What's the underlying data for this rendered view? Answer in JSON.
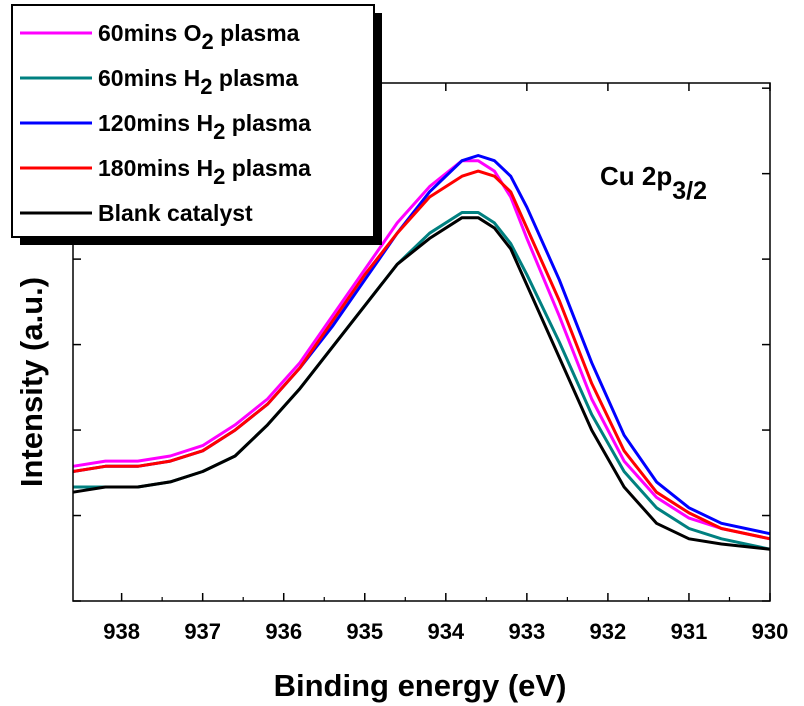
{
  "chart_data": {
    "type": "line",
    "xlabel": "Binding energy (eV)",
    "ylabel": "Intensity (a.u.)",
    "xlim": [
      938.6,
      930.0
    ],
    "x_reversed": true,
    "ylim": [
      0,
      100
    ],
    "y_tick_labels_shown": false,
    "x_ticks": [
      938,
      937,
      936,
      935,
      934,
      933,
      932,
      931,
      930
    ],
    "x_tick_labels": [
      "938",
      "937",
      "936",
      "935",
      "934",
      "933",
      "932",
      "931",
      "930"
    ],
    "annotation": {
      "main": "Cu 2p",
      "sub": "3/2"
    },
    "legend_position": "top-left",
    "series": [
      {
        "name": "60mins O2 plasma",
        "label_parts": [
          "60mins O",
          "2",
          " plasma"
        ],
        "color": "#ff00ff",
        "points": [
          [
            938.6,
            26
          ],
          [
            938.2,
            27
          ],
          [
            937.8,
            27
          ],
          [
            937.4,
            28
          ],
          [
            937.0,
            30
          ],
          [
            936.6,
            34
          ],
          [
            936.2,
            39
          ],
          [
            935.8,
            46
          ],
          [
            935.4,
            55
          ],
          [
            935.0,
            64
          ],
          [
            934.6,
            73
          ],
          [
            934.2,
            80
          ],
          [
            933.8,
            85
          ],
          [
            933.6,
            85
          ],
          [
            933.4,
            83
          ],
          [
            933.2,
            78
          ],
          [
            933.0,
            70
          ],
          [
            932.6,
            55
          ],
          [
            932.2,
            39
          ],
          [
            931.8,
            27
          ],
          [
            931.4,
            20
          ],
          [
            931.0,
            16
          ],
          [
            930.6,
            14
          ],
          [
            930.0,
            12
          ]
        ]
      },
      {
        "name": "60mins H2 plasma",
        "label_parts": [
          "60mins H",
          "2",
          " plasma"
        ],
        "color": "#008080",
        "points": [
          [
            938.6,
            22
          ],
          [
            938.2,
            22
          ],
          [
            937.8,
            22
          ],
          [
            937.4,
            23
          ],
          [
            937.0,
            25
          ],
          [
            936.6,
            28
          ],
          [
            936.2,
            34
          ],
          [
            935.8,
            41
          ],
          [
            935.4,
            49
          ],
          [
            935.0,
            57
          ],
          [
            934.6,
            65
          ],
          [
            934.2,
            71
          ],
          [
            933.8,
            75
          ],
          [
            933.6,
            75
          ],
          [
            933.4,
            73
          ],
          [
            933.2,
            69
          ],
          [
            933.0,
            63
          ],
          [
            932.6,
            50
          ],
          [
            932.2,
            36
          ],
          [
            931.8,
            25
          ],
          [
            931.4,
            18
          ],
          [
            931.0,
            14
          ],
          [
            930.6,
            12
          ],
          [
            930.0,
            10
          ]
        ]
      },
      {
        "name": "120mins H2 plasma",
        "label_parts": [
          "120mins H",
          "2",
          " plasma"
        ],
        "color": "#0000ff",
        "points": [
          [
            938.6,
            25
          ],
          [
            938.2,
            26
          ],
          [
            937.8,
            26
          ],
          [
            937.4,
            27
          ],
          [
            937.0,
            29
          ],
          [
            936.6,
            33
          ],
          [
            936.2,
            38
          ],
          [
            935.8,
            45
          ],
          [
            935.4,
            53
          ],
          [
            935.0,
            62
          ],
          [
            934.6,
            71
          ],
          [
            934.2,
            79
          ],
          [
            933.8,
            85
          ],
          [
            933.6,
            86
          ],
          [
            933.4,
            85
          ],
          [
            933.2,
            82
          ],
          [
            933.0,
            76
          ],
          [
            932.6,
            62
          ],
          [
            932.2,
            46
          ],
          [
            931.8,
            32
          ],
          [
            931.4,
            23
          ],
          [
            931.0,
            18
          ],
          [
            930.6,
            15
          ],
          [
            930.0,
            13
          ]
        ]
      },
      {
        "name": "180mins H2 plasma",
        "label_parts": [
          "180mins H",
          "2",
          " plasma"
        ],
        "color": "#ff0000",
        "points": [
          [
            938.6,
            25
          ],
          [
            938.2,
            26
          ],
          [
            937.8,
            26
          ],
          [
            937.4,
            27
          ],
          [
            937.0,
            29
          ],
          [
            936.6,
            33
          ],
          [
            936.2,
            38
          ],
          [
            935.8,
            45
          ],
          [
            935.4,
            54
          ],
          [
            935.0,
            63
          ],
          [
            934.6,
            71
          ],
          [
            934.2,
            78
          ],
          [
            933.8,
            82
          ],
          [
            933.6,
            83
          ],
          [
            933.4,
            82
          ],
          [
            933.2,
            79
          ],
          [
            933.0,
            72
          ],
          [
            932.6,
            58
          ],
          [
            932.2,
            42
          ],
          [
            931.8,
            29
          ],
          [
            931.4,
            21
          ],
          [
            931.0,
            17
          ],
          [
            930.6,
            14
          ],
          [
            930.0,
            12
          ]
        ]
      },
      {
        "name": "Blank catalyst",
        "label_parts": [
          "Blank catalyst",
          "",
          ""
        ],
        "color": "#000000",
        "points": [
          [
            938.6,
            21
          ],
          [
            938.2,
            22
          ],
          [
            937.8,
            22
          ],
          [
            937.4,
            23
          ],
          [
            937.0,
            25
          ],
          [
            936.6,
            28
          ],
          [
            936.2,
            34
          ],
          [
            935.8,
            41
          ],
          [
            935.4,
            49
          ],
          [
            935.0,
            57
          ],
          [
            934.6,
            65
          ],
          [
            934.2,
            70
          ],
          [
            933.8,
            74
          ],
          [
            933.6,
            74
          ],
          [
            933.4,
            72
          ],
          [
            933.2,
            68
          ],
          [
            933.0,
            61
          ],
          [
            932.6,
            47
          ],
          [
            932.2,
            33
          ],
          [
            931.8,
            22
          ],
          [
            931.4,
            15
          ],
          [
            931.0,
            12
          ],
          [
            930.6,
            11
          ],
          [
            930.0,
            10
          ]
        ]
      }
    ]
  }
}
